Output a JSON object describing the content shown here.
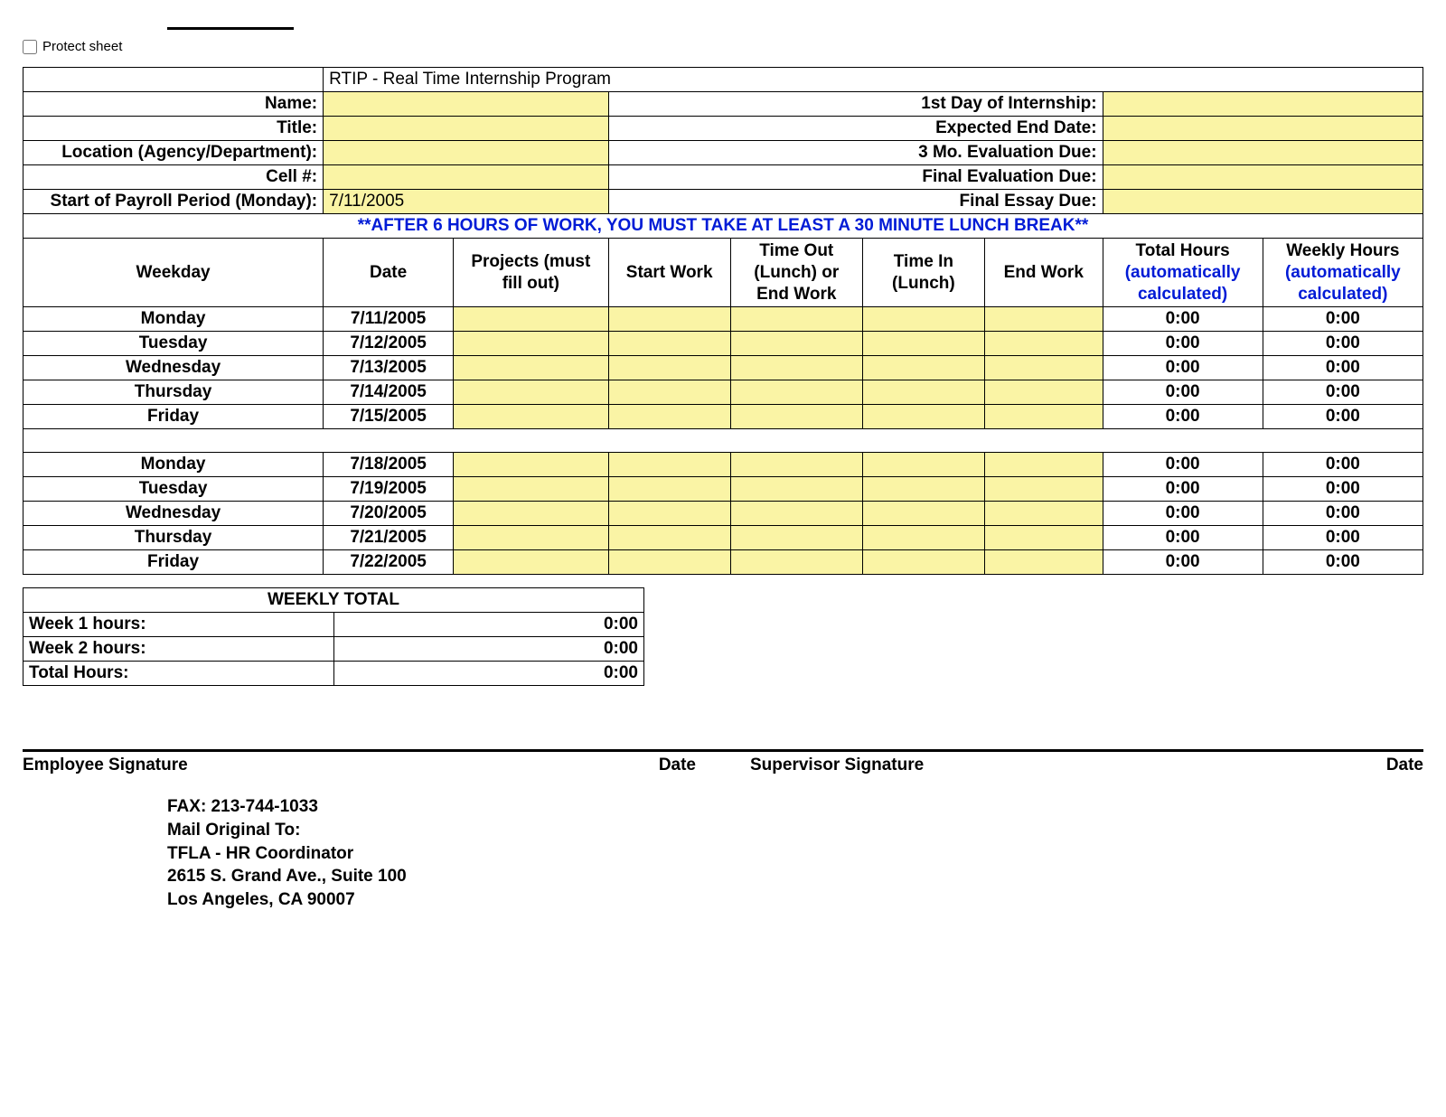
{
  "protect_label": "Protect sheet",
  "title": "RTIP - Real Time Internship Program",
  "info_left": [
    {
      "label": "Name:",
      "value": ""
    },
    {
      "label": "Title:",
      "value": ""
    },
    {
      "label": "Location (Agency/Department):",
      "value": ""
    },
    {
      "label": "Cell #:",
      "value": ""
    },
    {
      "label": "Start of Payroll Period (Monday):",
      "value": "7/11/2005"
    }
  ],
  "info_right": [
    {
      "label": "1st Day of Internship:",
      "value": ""
    },
    {
      "label": "Expected End Date:",
      "value": ""
    },
    {
      "label": "3 Mo. Evaluation Due:",
      "value": ""
    },
    {
      "label": "Final Evaluation Due:",
      "value": ""
    },
    {
      "label": "Final Essay Due:",
      "value": ""
    }
  ],
  "notice": "**AFTER 6 HOURS OF WORK, YOU MUST TAKE AT LEAST A 30 MINUTE LUNCH BREAK**",
  "columns": {
    "weekday": "Weekday",
    "date": "Date",
    "projects": "Projects (must fill out)",
    "start": "Start Work",
    "timeout": "Time Out (Lunch) or End Work",
    "timein": "Time In (Lunch)",
    "end": "End Work",
    "total_l1": "Total Hours",
    "total_l2": "(automatically calculated)",
    "weekly_l1": "Weekly Hours",
    "weekly_l2": "(automatically calculated)"
  },
  "week1": [
    {
      "day": "Monday",
      "date": "7/11/2005",
      "total": "0:00",
      "weekly": "0:00"
    },
    {
      "day": "Tuesday",
      "date": "7/12/2005",
      "total": "0:00",
      "weekly": "0:00"
    },
    {
      "day": "Wednesday",
      "date": "7/13/2005",
      "total": "0:00",
      "weekly": "0:00"
    },
    {
      "day": "Thursday",
      "date": "7/14/2005",
      "total": "0:00",
      "weekly": "0:00"
    },
    {
      "day": "Friday",
      "date": "7/15/2005",
      "total": "0:00",
      "weekly": "0:00"
    }
  ],
  "week2": [
    {
      "day": "Monday",
      "date": "7/18/2005",
      "total": "0:00",
      "weekly": "0:00"
    },
    {
      "day": "Tuesday",
      "date": "7/19/2005",
      "total": "0:00",
      "weekly": "0:00"
    },
    {
      "day": "Wednesday",
      "date": "7/20/2005",
      "total": "0:00",
      "weekly": "0:00"
    },
    {
      "day": "Thursday",
      "date": "7/21/2005",
      "total": "0:00",
      "weekly": "0:00"
    },
    {
      "day": "Friday",
      "date": "7/22/2005",
      "total": "0:00",
      "weekly": "0:00"
    }
  ],
  "summary": {
    "title": "WEEKLY TOTAL",
    "rows": [
      {
        "label": "Week 1 hours:",
        "value": "0:00"
      },
      {
        "label": "Week 2 hours:",
        "value": "0:00"
      },
      {
        "label": "Total Hours:",
        "value": "0:00"
      }
    ]
  },
  "signatures": {
    "emp": "Employee Signature",
    "sup": "Supervisor Signature",
    "date": "Date"
  },
  "footer": {
    "fax": "FAX:  213-744-1033",
    "mail": "Mail Original To:",
    "l1": "TFLA - HR Coordinator",
    "l2": "2615 S. Grand Ave., Suite 100",
    "l3": "Los Angeles, CA 90007"
  },
  "colors": {
    "yellow_fill": "#faf4a5",
    "blue_text": "#001bd6",
    "border": "#000000",
    "background": "#ffffff"
  }
}
